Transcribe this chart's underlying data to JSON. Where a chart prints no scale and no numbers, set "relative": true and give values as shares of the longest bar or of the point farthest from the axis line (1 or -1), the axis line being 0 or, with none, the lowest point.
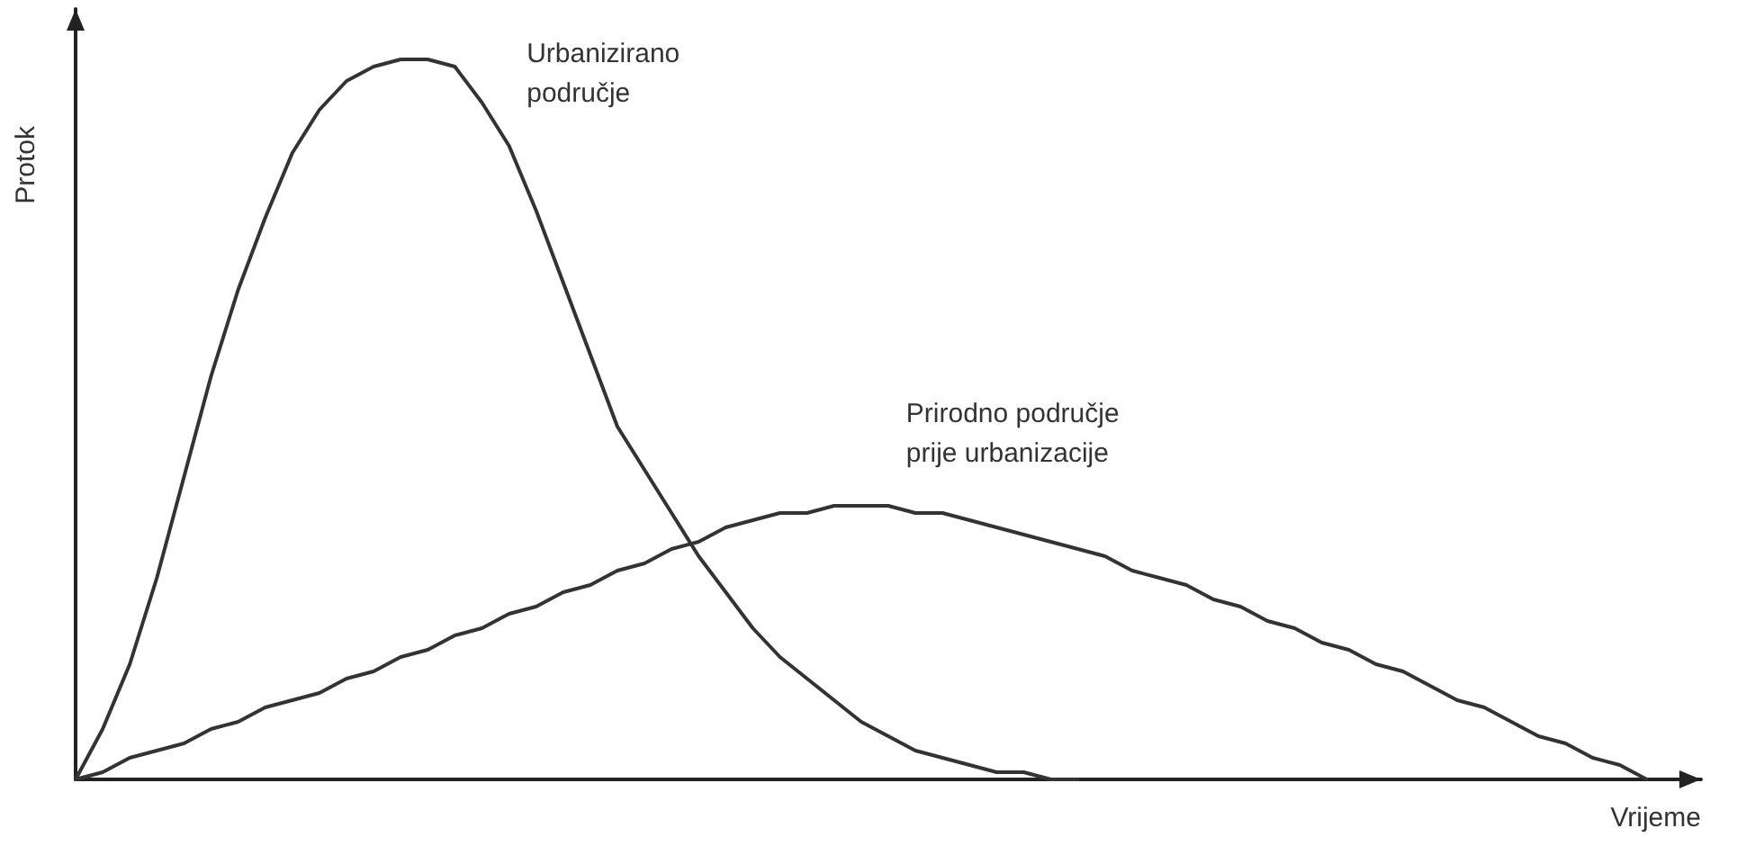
{
  "chart_data": {
    "type": "line",
    "relative": true,
    "xlabel": "Vrijeme",
    "ylabel": "Protok",
    "legend": false,
    "grid": false,
    "marker": "none",
    "line_style": "solid",
    "categories": [
      null,
      null,
      null,
      null,
      null,
      null,
      null,
      null,
      null,
      null,
      null,
      null,
      null,
      null,
      null,
      null,
      null,
      null,
      null,
      null,
      null,
      null,
      null,
      null,
      null,
      null,
      null,
      null,
      null,
      null,
      null,
      null,
      null,
      null,
      null,
      null,
      null,
      null,
      null,
      null,
      null,
      null,
      null,
      null,
      null,
      null,
      null,
      null,
      null,
      null,
      null,
      null,
      null,
      null,
      null,
      null,
      null,
      null,
      null,
      null,
      null
    ],
    "series": [
      {
        "name": "Urbanizirano područje",
        "color": "#333333",
        "values": [
          0,
          0.07,
          0.16,
          0.28,
          0.42,
          0.56,
          0.68,
          0.78,
          0.87,
          0.93,
          0.97,
          0.99,
          1,
          1,
          0.99,
          0.94,
          0.88,
          0.79,
          0.69,
          0.59,
          0.49,
          0.43,
          0.37,
          0.31,
          0.26,
          0.21,
          0.17,
          0.14,
          0.11,
          0.08,
          0.06,
          0.04,
          0.03,
          0.02,
          0.01,
          0.01,
          0,
          0,
          null,
          null,
          null,
          null,
          null,
          null,
          null,
          null,
          null,
          null,
          null,
          null,
          null,
          null,
          null,
          null,
          null,
          null,
          null,
          null,
          null,
          null,
          null
        ]
      },
      {
        "name": "Prirodno područje prije urbanizacije",
        "color": "#333333",
        "values": [
          0,
          0.01,
          0.03,
          0.04,
          0.05,
          0.07,
          0.08,
          0.1,
          0.11,
          0.12,
          0.14,
          0.15,
          0.17,
          0.18,
          0.2,
          0.21,
          0.23,
          0.24,
          0.26,
          0.27,
          0.29,
          0.3,
          0.32,
          0.33,
          0.35,
          0.36,
          0.37,
          0.37,
          0.38,
          0.38,
          0.38,
          0.37,
          0.37,
          0.36,
          0.35,
          0.34,
          0.33,
          0.32,
          0.31,
          0.29,
          0.28,
          0.27,
          0.25,
          0.24,
          0.22,
          0.21,
          0.19,
          0.18,
          0.16,
          0.15,
          0.13,
          0.11,
          0.1,
          0.08,
          0.06,
          0.05,
          0.03,
          0.02,
          0,
          null,
          null
        ]
      }
    ]
  }
}
